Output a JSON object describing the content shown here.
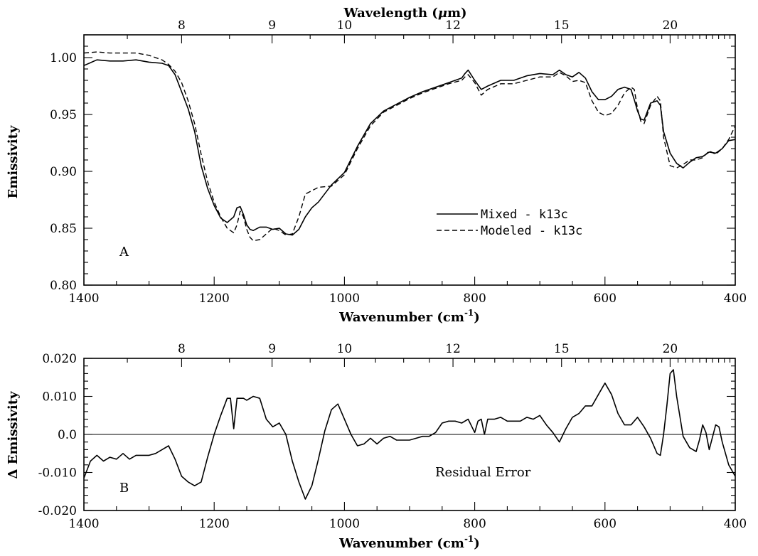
{
  "chart_data": [
    {
      "id": "A",
      "type": "line",
      "panel_label": "A",
      "xlabel": "Wavenumber (cm",
      "xlabel_sup": "-1",
      "xlabel_close": ")",
      "top_xlabel": "Wavelength (",
      "top_xlabel_mu": "μ",
      "top_xlabel_close": "m)",
      "ylabel": "Emissivity",
      "xlim": [
        1400,
        400
      ],
      "ylim": [
        0.8,
        1.02
      ],
      "xticks": [
        {
          "value": 1400,
          "label": "1400"
        },
        {
          "value": 1200,
          "label": "1200"
        },
        {
          "value": 1000,
          "label": "1000"
        },
        {
          "value": 800,
          "label": "800"
        },
        {
          "value": 600,
          "label": "600"
        },
        {
          "value": 400,
          "label": "400"
        }
      ],
      "yticks": [
        {
          "value": 0.8,
          "label": "0.80"
        },
        {
          "value": 0.85,
          "label": "0.85"
        },
        {
          "value": 0.9,
          "label": "0.90"
        },
        {
          "value": 0.95,
          "label": "0.95"
        },
        {
          "value": 1.0,
          "label": "1.00"
        }
      ],
      "top_ticks": [
        {
          "wavelength": 8,
          "label": "8"
        },
        {
          "wavelength": 9,
          "label": "9"
        },
        {
          "wavelength": 10,
          "label": "10"
        },
        {
          "wavelength": 12,
          "label": "12"
        },
        {
          "wavelength": 15,
          "label": "15"
        },
        {
          "wavelength": 20,
          "label": "20"
        }
      ],
      "legend": {
        "position": "center-right",
        "entries": [
          {
            "label": "Mixed  -  k13c",
            "style": "solid"
          },
          {
            "label": "Modeled  -  k13c",
            "style": "dashed"
          }
        ]
      },
      "series": [
        {
          "name": "Mixed - k13c",
          "style": "solid",
          "x": [
            1400,
            1380,
            1360,
            1340,
            1320,
            1300,
            1280,
            1270,
            1260,
            1250,
            1240,
            1230,
            1220,
            1210,
            1200,
            1190,
            1180,
            1170,
            1165,
            1160,
            1155,
            1150,
            1145,
            1140,
            1130,
            1120,
            1110,
            1100,
            1090,
            1080,
            1070,
            1060,
            1050,
            1040,
            1020,
            1000,
            980,
            960,
            940,
            920,
            900,
            880,
            860,
            840,
            820,
            815,
            810,
            800,
            790,
            780,
            760,
            740,
            720,
            700,
            680,
            670,
            660,
            650,
            640,
            630,
            620,
            610,
            600,
            590,
            580,
            570,
            560,
            555,
            550,
            545,
            540,
            530,
            520,
            515,
            510,
            500,
            490,
            480,
            470,
            460,
            450,
            440,
            430,
            420,
            410,
            400
          ],
          "y": [
            0.993,
            0.998,
            0.997,
            0.997,
            0.998,
            0.996,
            0.995,
            0.993,
            0.985,
            0.97,
            0.955,
            0.935,
            0.905,
            0.885,
            0.87,
            0.859,
            0.855,
            0.86,
            0.868,
            0.869,
            0.862,
            0.853,
            0.849,
            0.848,
            0.851,
            0.851,
            0.849,
            0.85,
            0.845,
            0.844,
            0.849,
            0.86,
            0.868,
            0.873,
            0.888,
            0.899,
            0.922,
            0.942,
            0.953,
            0.959,
            0.965,
            0.97,
            0.974,
            0.978,
            0.982,
            0.986,
            0.989,
            0.98,
            0.972,
            0.975,
            0.98,
            0.98,
            0.984,
            0.986,
            0.985,
            0.989,
            0.985,
            0.983,
            0.987,
            0.982,
            0.97,
            0.963,
            0.963,
            0.966,
            0.972,
            0.974,
            0.972,
            0.963,
            0.953,
            0.946,
            0.945,
            0.96,
            0.962,
            0.958,
            0.935,
            0.916,
            0.907,
            0.903,
            0.908,
            0.912,
            0.913,
            0.917,
            0.916,
            0.92,
            0.927,
            0.928
          ]
        },
        {
          "name": "Modeled - k13c",
          "style": "dashed",
          "x": [
            1400,
            1380,
            1360,
            1340,
            1320,
            1300,
            1280,
            1270,
            1260,
            1250,
            1240,
            1230,
            1220,
            1210,
            1200,
            1190,
            1180,
            1170,
            1165,
            1160,
            1155,
            1150,
            1145,
            1140,
            1130,
            1120,
            1110,
            1100,
            1090,
            1080,
            1070,
            1060,
            1050,
            1040,
            1020,
            1000,
            980,
            960,
            940,
            920,
            900,
            880,
            860,
            840,
            820,
            815,
            810,
            800,
            790,
            780,
            760,
            740,
            720,
            700,
            680,
            670,
            660,
            650,
            640,
            630,
            620,
            610,
            600,
            590,
            580,
            570,
            560,
            555,
            550,
            545,
            540,
            530,
            520,
            515,
            510,
            500,
            490,
            480,
            470,
            460,
            450,
            440,
            430,
            420,
            410,
            400
          ],
          "y": [
            1.004,
            1.005,
            1.004,
            1.004,
            1.004,
            1.002,
            0.998,
            0.994,
            0.988,
            0.978,
            0.962,
            0.942,
            0.915,
            0.891,
            0.873,
            0.86,
            0.85,
            0.846,
            0.853,
            0.865,
            0.86,
            0.849,
            0.842,
            0.839,
            0.84,
            0.845,
            0.85,
            0.848,
            0.844,
            0.845,
            0.86,
            0.88,
            0.883,
            0.886,
            0.887,
            0.897,
            0.92,
            0.94,
            0.952,
            0.958,
            0.964,
            0.969,
            0.973,
            0.977,
            0.98,
            0.983,
            0.985,
            0.978,
            0.967,
            0.972,
            0.977,
            0.977,
            0.98,
            0.983,
            0.983,
            0.987,
            0.984,
            0.979,
            0.98,
            0.978,
            0.962,
            0.952,
            0.949,
            0.951,
            0.958,
            0.969,
            0.974,
            0.972,
            0.955,
            0.944,
            0.942,
            0.958,
            0.966,
            0.962,
            0.93,
            0.905,
            0.903,
            0.906,
            0.91,
            0.91,
            0.912,
            0.918,
            0.915,
            0.92,
            0.928,
            0.94
          ]
        }
      ]
    },
    {
      "id": "B",
      "type": "line",
      "panel_label": "B",
      "xlabel": "Wavenumber (cm",
      "xlabel_sup": "-1",
      "xlabel_close": ")",
      "ylabel": "Δ Emissivity",
      "annotation": "Residual Error",
      "xlim": [
        1400,
        400
      ],
      "ylim": [
        -0.02,
        0.02
      ],
      "xticks": [
        {
          "value": 1400,
          "label": "1400"
        },
        {
          "value": 1200,
          "label": "1200"
        },
        {
          "value": 1000,
          "label": "1000"
        },
        {
          "value": 800,
          "label": "800"
        },
        {
          "value": 600,
          "label": "600"
        },
        {
          "value": 400,
          "label": "400"
        }
      ],
      "yticks": [
        {
          "value": -0.02,
          "label": "-0.020"
        },
        {
          "value": -0.01,
          "label": "-0.010"
        },
        {
          "value": 0.0,
          "label": "0.0"
        },
        {
          "value": 0.01,
          "label": "0.010"
        },
        {
          "value": 0.02,
          "label": "0.020"
        }
      ],
      "top_ticks": [
        {
          "wavelength": 8,
          "label": "8"
        },
        {
          "wavelength": 9,
          "label": "9"
        },
        {
          "wavelength": 10,
          "label": "10"
        },
        {
          "wavelength": 12,
          "label": "12"
        },
        {
          "wavelength": 15,
          "label": "15"
        },
        {
          "wavelength": 20,
          "label": "20"
        }
      ],
      "zero_line": 0.0,
      "series": [
        {
          "name": "Residual Error",
          "style": "solid",
          "x": [
            1400,
            1390,
            1380,
            1370,
            1360,
            1350,
            1340,
            1330,
            1320,
            1300,
            1290,
            1280,
            1270,
            1260,
            1250,
            1240,
            1230,
            1220,
            1210,
            1200,
            1190,
            1180,
            1175,
            1170,
            1165,
            1160,
            1155,
            1150,
            1140,
            1130,
            1120,
            1110,
            1100,
            1090,
            1080,
            1070,
            1060,
            1050,
            1040,
            1030,
            1020,
            1010,
            1000,
            990,
            980,
            970,
            960,
            950,
            940,
            930,
            920,
            910,
            900,
            890,
            880,
            870,
            860,
            850,
            840,
            830,
            820,
            810,
            800,
            795,
            790,
            785,
            780,
            770,
            760,
            750,
            740,
            730,
            720,
            710,
            700,
            690,
            680,
            670,
            660,
            650,
            640,
            630,
            620,
            610,
            600,
            590,
            580,
            570,
            560,
            550,
            540,
            530,
            520,
            515,
            510,
            505,
            500,
            495,
            490,
            480,
            470,
            460,
            455,
            450,
            445,
            440,
            430,
            425,
            420,
            410,
            400
          ],
          "x_note": "wavenumber (cm-1)",
          "y": [
            -0.0115,
            -0.007,
            -0.0055,
            -0.007,
            -0.006,
            -0.0065,
            -0.005,
            -0.0065,
            -0.0055,
            -0.0055,
            -0.005,
            -0.004,
            -0.003,
            -0.0065,
            -0.011,
            -0.0125,
            -0.0135,
            -0.0125,
            -0.006,
            0.0,
            0.005,
            0.0095,
            0.0095,
            0.0015,
            0.0095,
            0.0095,
            0.0095,
            0.009,
            0.01,
            0.0095,
            0.004,
            0.002,
            0.003,
            0.0,
            -0.007,
            -0.0125,
            -0.017,
            -0.0135,
            -0.0065,
            0.001,
            0.0065,
            0.008,
            0.004,
            0.0,
            -0.003,
            -0.0025,
            -0.001,
            -0.0025,
            -0.001,
            -0.0005,
            -0.0015,
            -0.0015,
            -0.0015,
            -0.001,
            -0.0005,
            -0.0005,
            0.0005,
            0.003,
            0.0035,
            0.0035,
            0.003,
            0.004,
            0.0005,
            0.0035,
            0.004,
            0.0,
            0.004,
            0.004,
            0.0045,
            0.0035,
            0.0035,
            0.0035,
            0.0045,
            0.004,
            0.005,
            0.0025,
            0.0005,
            -0.002,
            0.0015,
            0.0045,
            0.0055,
            0.0075,
            0.0075,
            0.0105,
            0.0135,
            0.0105,
            0.0055,
            0.0025,
            0.0025,
            0.0045,
            0.002,
            -0.001,
            -0.005,
            -0.0055,
            0.0,
            0.0075,
            0.016,
            0.017,
            0.01,
            -0.0005,
            -0.0035,
            -0.0045,
            -0.0015,
            0.0025,
            0.0005,
            -0.004,
            0.0025,
            0.002,
            -0.002,
            -0.008,
            -0.011
          ]
        }
      ]
    }
  ]
}
